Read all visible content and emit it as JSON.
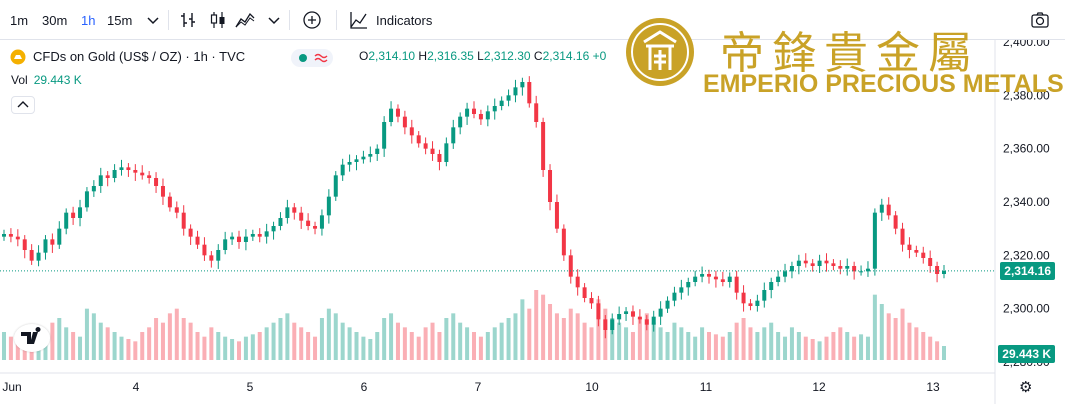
{
  "toolbar": {
    "timeframes": [
      "1m",
      "30m",
      "1h",
      "15m"
    ],
    "active_timeframe": "1h",
    "indicators_label": "Indicators"
  },
  "legend": {
    "symbol": "CFDs on Gold (US$ / OZ) · 1h · TVC",
    "open": "2,314.10",
    "high": "2,316.35",
    "low": "2,312.30",
    "close": "2,314.16",
    "change": "+0",
    "open_prefix": "O",
    "high_prefix": "H",
    "low_prefix": "L",
    "close_prefix": "C"
  },
  "volume": {
    "label": "Vol",
    "value": "29.443 K"
  },
  "price_axis": {
    "ticks": [
      "2,400.00",
      "2,380.00",
      "2,360.00",
      "2,340.00",
      "2,320.00",
      "2,300.00",
      "2,280.00"
    ],
    "current_price_label": "2,314.16",
    "volume_label": "29.443 K"
  },
  "watermark": {
    "chinese": "帝鋒貴金屬",
    "english": "EMPERIO PRECIOUS METALS"
  },
  "colors": {
    "up": "#089981",
    "down": "#f23645",
    "brand_gold": "#c9a227"
  },
  "chart_data": {
    "type": "candlestick",
    "title": "CFDs on Gold (US$ / OZ) · 1h · TVC",
    "x_labels": [
      "Jun",
      "4",
      "5",
      "6",
      "7",
      "10",
      "11",
      "12",
      "13"
    ],
    "ylim": [
      2280,
      2400
    ],
    "closes": [
      2328,
      2327,
      2326,
      2322,
      2318,
      2321,
      2326,
      2324,
      2330,
      2336,
      2334,
      2338,
      2344,
      2346,
      2350,
      2349,
      2352,
      2353,
      2352,
      2351,
      2350,
      2349,
      2346,
      2342,
      2338,
      2336,
      2330,
      2327,
      2324,
      2320,
      2318,
      2322,
      2326,
      2327,
      2325,
      2327,
      2328,
      2327,
      2329,
      2331,
      2334,
      2338,
      2336,
      2333,
      2331,
      2330,
      2335,
      2342,
      2350,
      2354,
      2355,
      2356,
      2357,
      2358,
      2360,
      2370,
      2375,
      2372,
      2368,
      2365,
      2362,
      2360,
      2358,
      2355,
      2362,
      2368,
      2372,
      2375,
      2373,
      2371,
      2374,
      2376,
      2378,
      2380,
      2383,
      2385,
      2377,
      2370,
      2352,
      2340,
      2330,
      2320,
      2312,
      2308,
      2304,
      2302,
      2296,
      2292,
      2296,
      2298,
      2299,
      2297,
      2296,
      2294,
      2297,
      2300,
      2303,
      2306,
      2308,
      2310,
      2312,
      2313,
      2312,
      2311,
      2310,
      2312,
      2306,
      2302,
      2301,
      2303,
      2307,
      2310,
      2312,
      2314,
      2316,
      2318,
      2317,
      2316,
      2318,
      2317,
      2316,
      2315,
      2316,
      2314,
      2314,
      2315,
      2336,
      2339,
      2335,
      2330,
      2324,
      2322,
      2321,
      2319,
      2316,
      2313,
      2314.16
    ],
    "volumes": [
      12,
      10,
      8,
      14,
      12,
      11,
      10,
      16,
      18,
      14,
      12,
      10,
      22,
      20,
      16,
      14,
      12,
      10,
      9,
      8,
      12,
      14,
      18,
      16,
      20,
      22,
      18,
      16,
      12,
      10,
      14,
      12,
      10,
      9,
      8,
      10,
      11,
      12,
      14,
      16,
      18,
      20,
      16,
      14,
      12,
      10,
      18,
      22,
      20,
      16,
      14,
      12,
      10,
      9,
      12,
      18,
      20,
      16,
      14,
      12,
      10,
      14,
      16,
      12,
      18,
      20,
      16,
      14,
      12,
      10,
      12,
      14,
      16,
      18,
      20,
      26,
      22,
      30,
      28,
      24,
      20,
      18,
      22,
      20,
      16,
      14,
      26,
      22,
      18,
      16,
      14,
      12,
      18,
      20,
      16,
      14,
      12,
      16,
      14,
      12,
      10,
      14,
      12,
      11,
      10,
      12,
      16,
      18,
      14,
      12,
      14,
      16,
      12,
      10,
      14,
      12,
      10,
      9,
      8,
      10,
      12,
      14,
      12,
      10,
      11,
      10,
      28,
      24,
      20,
      18,
      22,
      16,
      14,
      12,
      10,
      8,
      6
    ]
  }
}
